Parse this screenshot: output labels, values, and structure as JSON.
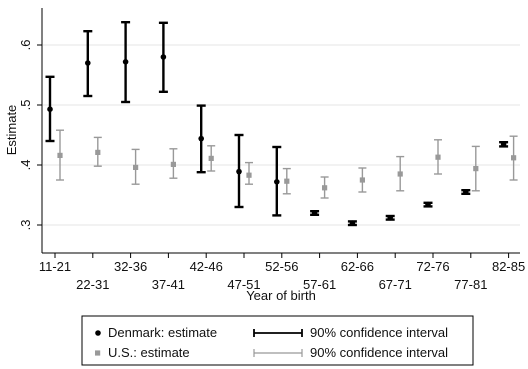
{
  "chart_data": {
    "type": "scatter",
    "xlabel": "Year of birth",
    "ylabel": "Estimate",
    "ylim": [
      0.27,
      0.66
    ],
    "yticks": [
      ".3",
      ".4",
      ".5",
      ".6"
    ],
    "ytick_values": [
      0.3,
      0.4,
      0.5,
      0.6
    ],
    "grid": true,
    "legend_position": "bottom",
    "categories": [
      "11-21",
      "22-31",
      "32-36",
      "37-41",
      "42-46",
      "47-51",
      "52-56",
      "57-61",
      "62-66",
      "67-71",
      "72-76",
      "77-81",
      "82-85"
    ],
    "series": [
      {
        "name": "Denmark: estimate",
        "ci_name": "90% confidence interval",
        "color": "#000000",
        "values": [
          0.493,
          0.57,
          0.572,
          0.58,
          0.444,
          0.389,
          0.372,
          0.32,
          0.303,
          0.312,
          0.334,
          0.355,
          0.435
        ],
        "lower": [
          0.44,
          0.515,
          0.505,
          0.522,
          0.388,
          0.33,
          0.316,
          0.317,
          0.3,
          0.309,
          0.331,
          0.352,
          0.431
        ],
        "upper": [
          0.547,
          0.623,
          0.638,
          0.637,
          0.499,
          0.45,
          0.43,
          0.323,
          0.306,
          0.315,
          0.337,
          0.358,
          0.438
        ]
      },
      {
        "name": "U.S.: estimate",
        "ci_name": "90% confidence interval",
        "color": "#999999",
        "values": [
          0.416,
          0.421,
          0.396,
          0.401,
          0.411,
          0.383,
          0.373,
          0.362,
          0.375,
          0.385,
          0.413,
          0.394,
          0.412
        ],
        "lower": [
          0.375,
          0.398,
          0.368,
          0.378,
          0.39,
          0.368,
          0.352,
          0.345,
          0.355,
          0.357,
          0.385,
          0.357,
          0.375
        ],
        "upper": [
          0.458,
          0.446,
          0.426,
          0.427,
          0.432,
          0.404,
          0.394,
          0.38,
          0.395,
          0.414,
          0.442,
          0.431,
          0.448
        ]
      }
    ]
  }
}
